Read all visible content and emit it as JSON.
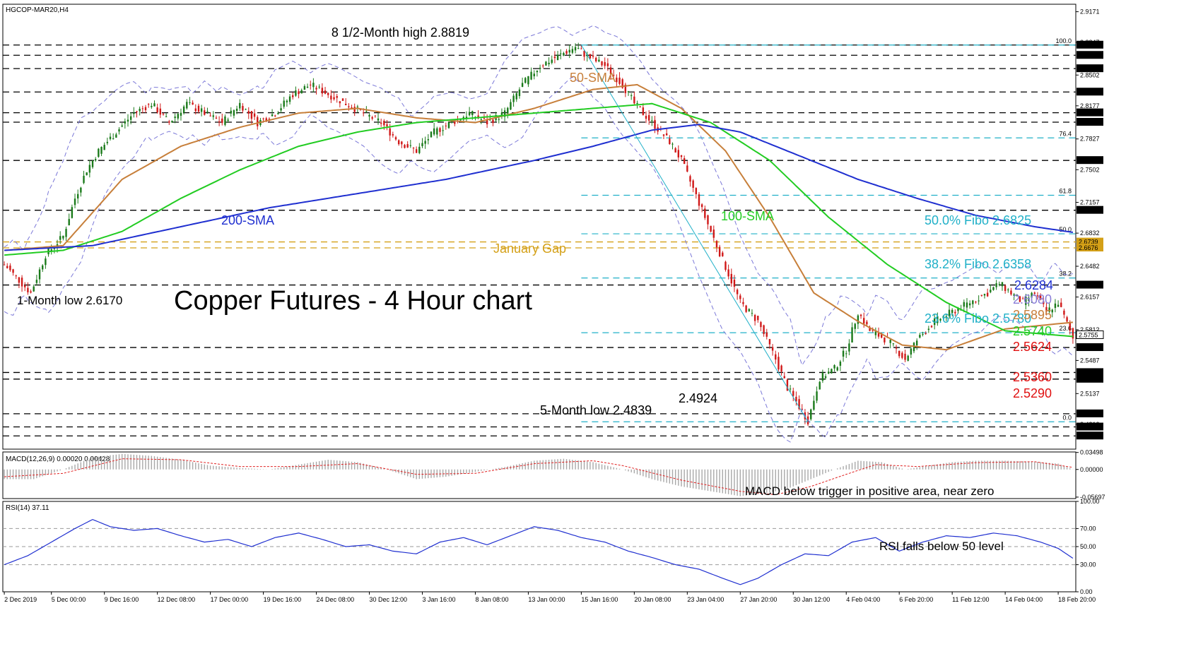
{
  "chart_data": {
    "type": "candlestick",
    "symbol_label": "HGCOP-MAR20,H4",
    "title": "Copper Futures - 4 Hour chart",
    "main_ylim": [
      2.455,
      2.925
    ],
    "price_axis_ticks": [
      "2.9171",
      "2.8847",
      "2.8502",
      "2.8177",
      "2.7827",
      "2.7502",
      "2.7157",
      "2.6832",
      "2.6482",
      "2.6157",
      "2.5812",
      "2.5487",
      "2.5137",
      "2.4812"
    ],
    "x_tick_labels": [
      "2 Dec 2019",
      "5 Dec 00:00",
      "9 Dec 16:00",
      "12 Dec 08:00",
      "17 Dec 00:00",
      "19 Dec 16:00",
      "24 Dec 08:00",
      "30 Dec 12:00",
      "3 Jan 16:00",
      "8 Jan 08:00",
      "13 Jan 00:00",
      "15 Jan 16:00",
      "20 Jan 08:00",
      "23 Jan 04:00",
      "27 Jan 20:00",
      "30 Jan 12:00",
      "4 Feb 04:00",
      "6 Feb 20:00",
      "11 Feb 12:00",
      "14 Feb 04:00",
      "18 Feb 20:00"
    ],
    "x_tick_index": [
      0,
      16,
      34,
      52,
      70,
      88,
      106,
      124,
      142,
      160,
      178,
      196,
      214,
      232,
      250,
      268,
      286,
      304,
      322,
      340,
      358
    ],
    "n_bars": 364,
    "resistance_support_levels": [
      "2.8819",
      "2.8711",
      "2.8570",
      "2.8323",
      "2.8104",
      "2.8004",
      "2.7600",
      "2.7074",
      "2.6284",
      "2.5624",
      "2.5360",
      "2.5290",
      "2.4924",
      "2.4785",
      "2.4690"
    ],
    "gap_levels": [
      "2.6739",
      "2.6676"
    ],
    "current_level": "2.5755",
    "fibonacci": {
      "levels": [
        {
          "label": "100.0",
          "price": 2.8819
        },
        {
          "label": "76.4",
          "price": 2.7838
        },
        {
          "label": "61.8",
          "price": 2.7232
        },
        {
          "label": "50.0",
          "price": 2.6825
        },
        {
          "label": "38.2",
          "price": 2.6358
        },
        {
          "label": "23.6",
          "price": 2.578
        },
        {
          "label": "0.0",
          "price": 2.4839
        }
      ]
    },
    "ohlc_path": [
      [
        0,
        2.65
      ],
      [
        6,
        2.63
      ],
      [
        9,
        2.62
      ],
      [
        14,
        2.66
      ],
      [
        20,
        2.68
      ],
      [
        24,
        2.72
      ],
      [
        28,
        2.75
      ],
      [
        32,
        2.77
      ],
      [
        38,
        2.79
      ],
      [
        44,
        2.81
      ],
      [
        50,
        2.82
      ],
      [
        56,
        2.8
      ],
      [
        62,
        2.82
      ],
      [
        68,
        2.81
      ],
      [
        74,
        2.8
      ],
      [
        80,
        2.82
      ],
      [
        86,
        2.8
      ],
      [
        92,
        2.81
      ],
      [
        98,
        2.83
      ],
      [
        104,
        2.84
      ],
      [
        110,
        2.83
      ],
      [
        116,
        2.82
      ],
      [
        122,
        2.81
      ],
      [
        128,
        2.8
      ],
      [
        134,
        2.78
      ],
      [
        140,
        2.77
      ],
      [
        146,
        2.79
      ],
      [
        152,
        2.8
      ],
      [
        158,
        2.81
      ],
      [
        164,
        2.8
      ],
      [
        170,
        2.81
      ],
      [
        176,
        2.84
      ],
      [
        182,
        2.86
      ],
      [
        188,
        2.87
      ],
      [
        194,
        2.88
      ],
      [
        198,
        2.87
      ],
      [
        204,
        2.86
      ],
      [
        210,
        2.84
      ],
      [
        214,
        2.82
      ],
      [
        220,
        2.8
      ],
      [
        226,
        2.78
      ],
      [
        230,
        2.76
      ],
      [
        234,
        2.73
      ],
      [
        238,
        2.7
      ],
      [
        242,
        2.67
      ],
      [
        246,
        2.64
      ],
      [
        250,
        2.61
      ],
      [
        256,
        2.59
      ],
      [
        262,
        2.55
      ],
      [
        266,
        2.52
      ],
      [
        270,
        2.5
      ],
      [
        273,
        2.485
      ],
      [
        277,
        2.53
      ],
      [
        282,
        2.54
      ],
      [
        286,
        2.56
      ],
      [
        290,
        2.6
      ],
      [
        294,
        2.58
      ],
      [
        300,
        2.57
      ],
      [
        306,
        2.55
      ],
      [
        310,
        2.57
      ],
      [
        316,
        2.59
      ],
      [
        322,
        2.6
      ],
      [
        328,
        2.61
      ],
      [
        334,
        2.62
      ],
      [
        338,
        2.63
      ],
      [
        342,
        2.62
      ],
      [
        346,
        2.61
      ],
      [
        350,
        2.62
      ],
      [
        354,
        2.6
      ],
      [
        358,
        2.61
      ],
      [
        362,
        2.58
      ],
      [
        363,
        2.572
      ]
    ],
    "sma": [
      {
        "name": "50-SMA",
        "color": "#c77f3a",
        "points": [
          [
            0,
            2.665
          ],
          [
            20,
            2.67
          ],
          [
            40,
            2.74
          ],
          [
            60,
            2.775
          ],
          [
            80,
            2.795
          ],
          [
            100,
            2.81
          ],
          [
            120,
            2.815
          ],
          [
            140,
            2.805
          ],
          [
            160,
            2.8
          ],
          [
            180,
            2.815
          ],
          [
            200,
            2.835
          ],
          [
            215,
            2.84
          ],
          [
            230,
            2.815
          ],
          [
            245,
            2.77
          ],
          [
            260,
            2.7
          ],
          [
            275,
            2.62
          ],
          [
            290,
            2.59
          ],
          [
            305,
            2.565
          ],
          [
            320,
            2.56
          ],
          [
            340,
            2.582
          ],
          [
            363,
            2.589
          ]
        ]
      },
      {
        "name": "100-SMA",
        "color": "#22cc22",
        "points": [
          [
            0,
            2.66
          ],
          [
            20,
            2.665
          ],
          [
            40,
            2.685
          ],
          [
            60,
            2.72
          ],
          [
            80,
            2.75
          ],
          [
            100,
            2.775
          ],
          [
            120,
            2.79
          ],
          [
            140,
            2.8
          ],
          [
            160,
            2.805
          ],
          [
            180,
            2.81
          ],
          [
            200,
            2.815
          ],
          [
            220,
            2.82
          ],
          [
            240,
            2.8
          ],
          [
            260,
            2.76
          ],
          [
            280,
            2.7
          ],
          [
            300,
            2.65
          ],
          [
            320,
            2.61
          ],
          [
            340,
            2.58
          ],
          [
            363,
            2.574
          ]
        ]
      },
      {
        "name": "200-SMA",
        "color": "#1f2fd0",
        "points": [
          [
            0,
            2.665
          ],
          [
            30,
            2.67
          ],
          [
            60,
            2.69
          ],
          [
            90,
            2.71
          ],
          [
            120,
            2.725
          ],
          [
            150,
            2.74
          ],
          [
            180,
            2.76
          ],
          [
            200,
            2.775
          ],
          [
            220,
            2.792
          ],
          [
            236,
            2.798
          ],
          [
            250,
            2.79
          ],
          [
            270,
            2.765
          ],
          [
            290,
            2.74
          ],
          [
            310,
            2.72
          ],
          [
            330,
            2.702
          ],
          [
            350,
            2.69
          ],
          [
            363,
            2.684
          ]
        ]
      }
    ],
    "annotations": [
      {
        "text": "8 1/2-Month high 2.8819",
        "color": "#000000"
      },
      {
        "text": "50-SMA",
        "color": "#c77f3a"
      },
      {
        "text": "200-SMA",
        "color": "#1f2fd0"
      },
      {
        "text": "100-SMA",
        "color": "#22cc22"
      },
      {
        "text": "January Gap",
        "color": "#d4a017"
      },
      {
        "text": "1-Month low 2.6170",
        "color": "#000000"
      },
      {
        "text": "5-Month low 2.4839",
        "color": "#000000"
      },
      {
        "text": "2.4924",
        "color": "#000000"
      },
      {
        "text": "50.0% Fibo 2.6825",
        "color": "#20b0c8"
      },
      {
        "text": "38.2% Fibo 2.6358",
        "color": "#20b0c8"
      },
      {
        "text": "23.6% Fibo 2.5780",
        "color": "#20b0c8"
      },
      {
        "text": "2.6284",
        "color": "#1f2fd0"
      },
      {
        "text": "2.6080",
        "color": "#8b7fd8"
      },
      {
        "text": "2.5895",
        "color": "#c77f3a"
      },
      {
        "text": "2.5740",
        "color": "#22cc22"
      },
      {
        "text": "2.5624",
        "color": "#e01010"
      },
      {
        "text": "2.5360",
        "color": "#e01010"
      },
      {
        "text": "2.5290",
        "color": "#e01010"
      }
    ],
    "macd": {
      "label": "MACD(12,26,9) 0.00020 0.00428",
      "ylim": [
        -0.06,
        0.036
      ],
      "axis_ticks": [
        {
          "label": "0.03498",
          "v": 0.03498
        },
        {
          "label": "0.00000",
          "v": 0.0
        },
        {
          "label": "-0.05697",
          "v": -0.05697
        }
      ],
      "histogram_path": [
        [
          0,
          -0.02
        ],
        [
          10,
          -0.02
        ],
        [
          20,
          0.0
        ],
        [
          30,
          0.025
        ],
        [
          40,
          0.032
        ],
        [
          50,
          0.028
        ],
        [
          60,
          0.02
        ],
        [
          70,
          0.008
        ],
        [
          80,
          0.003
        ],
        [
          90,
          0.0
        ],
        [
          100,
          0.01
        ],
        [
          110,
          0.02
        ],
        [
          120,
          0.015
        ],
        [
          130,
          0.0
        ],
        [
          140,
          -0.02
        ],
        [
          150,
          -0.015
        ],
        [
          160,
          -0.005
        ],
        [
          170,
          0.005
        ],
        [
          180,
          0.018
        ],
        [
          190,
          0.022
        ],
        [
          200,
          0.015
        ],
        [
          210,
          0.0
        ],
        [
          220,
          -0.02
        ],
        [
          230,
          -0.035
        ],
        [
          240,
          -0.045
        ],
        [
          250,
          -0.055
        ],
        [
          258,
          -0.05
        ],
        [
          266,
          -0.04
        ],
        [
          274,
          -0.02
        ],
        [
          282,
          0.0
        ],
        [
          290,
          0.018
        ],
        [
          298,
          0.015
        ],
        [
          306,
          0.0
        ],
        [
          314,
          0.008
        ],
        [
          322,
          0.015
        ],
        [
          330,
          0.018
        ],
        [
          340,
          0.018
        ],
        [
          350,
          0.016
        ],
        [
          358,
          0.012
        ],
        [
          363,
          0.0002
        ]
      ],
      "signal_path": [
        [
          0,
          -0.015
        ],
        [
          20,
          -0.008
        ],
        [
          40,
          0.022
        ],
        [
          60,
          0.02
        ],
        [
          80,
          0.006
        ],
        [
          100,
          0.006
        ],
        [
          120,
          0.012
        ],
        [
          140,
          -0.01
        ],
        [
          160,
          -0.008
        ],
        [
          180,
          0.012
        ],
        [
          200,
          0.018
        ],
        [
          210,
          0.008
        ],
        [
          230,
          -0.022
        ],
        [
          250,
          -0.045
        ],
        [
          262,
          -0.052
        ],
        [
          274,
          -0.035
        ],
        [
          286,
          -0.01
        ],
        [
          296,
          0.01
        ],
        [
          310,
          0.006
        ],
        [
          330,
          0.014
        ],
        [
          350,
          0.016
        ],
        [
          363,
          0.00428
        ]
      ],
      "annotation": "MACD below trigger in positive area, near zero"
    },
    "rsi": {
      "label": "RSI(14) 37.11",
      "ylim": [
        0,
        100
      ],
      "axis_ticks": [
        {
          "label": "100.00",
          "v": 100
        },
        {
          "label": "70.00",
          "v": 70
        },
        {
          "label": "50.00",
          "v": 50
        },
        {
          "label": "30.00",
          "v": 30
        },
        {
          "label": "0.00",
          "v": 0
        }
      ],
      "levels": [
        70,
        50,
        30
      ],
      "path": [
        [
          0,
          30
        ],
        [
          8,
          40
        ],
        [
          16,
          55
        ],
        [
          24,
          70
        ],
        [
          30,
          80
        ],
        [
          36,
          72
        ],
        [
          44,
          68
        ],
        [
          52,
          70
        ],
        [
          60,
          62
        ],
        [
          68,
          55
        ],
        [
          76,
          58
        ],
        [
          84,
          50
        ],
        [
          92,
          60
        ],
        [
          100,
          65
        ],
        [
          108,
          58
        ],
        [
          116,
          50
        ],
        [
          124,
          52
        ],
        [
          132,
          45
        ],
        [
          140,
          42
        ],
        [
          148,
          55
        ],
        [
          156,
          60
        ],
        [
          164,
          52
        ],
        [
          172,
          62
        ],
        [
          180,
          72
        ],
        [
          188,
          68
        ],
        [
          196,
          60
        ],
        [
          204,
          55
        ],
        [
          212,
          45
        ],
        [
          220,
          38
        ],
        [
          228,
          30
        ],
        [
          236,
          25
        ],
        [
          244,
          15
        ],
        [
          250,
          8
        ],
        [
          256,
          15
        ],
        [
          264,
          30
        ],
        [
          272,
          42
        ],
        [
          280,
          40
        ],
        [
          288,
          55
        ],
        [
          296,
          60
        ],
        [
          304,
          45
        ],
        [
          312,
          55
        ],
        [
          320,
          62
        ],
        [
          328,
          60
        ],
        [
          336,
          65
        ],
        [
          344,
          62
        ],
        [
          352,
          55
        ],
        [
          358,
          48
        ],
        [
          363,
          37.11
        ]
      ],
      "annotation": "RSI falls below 50 level"
    }
  }
}
